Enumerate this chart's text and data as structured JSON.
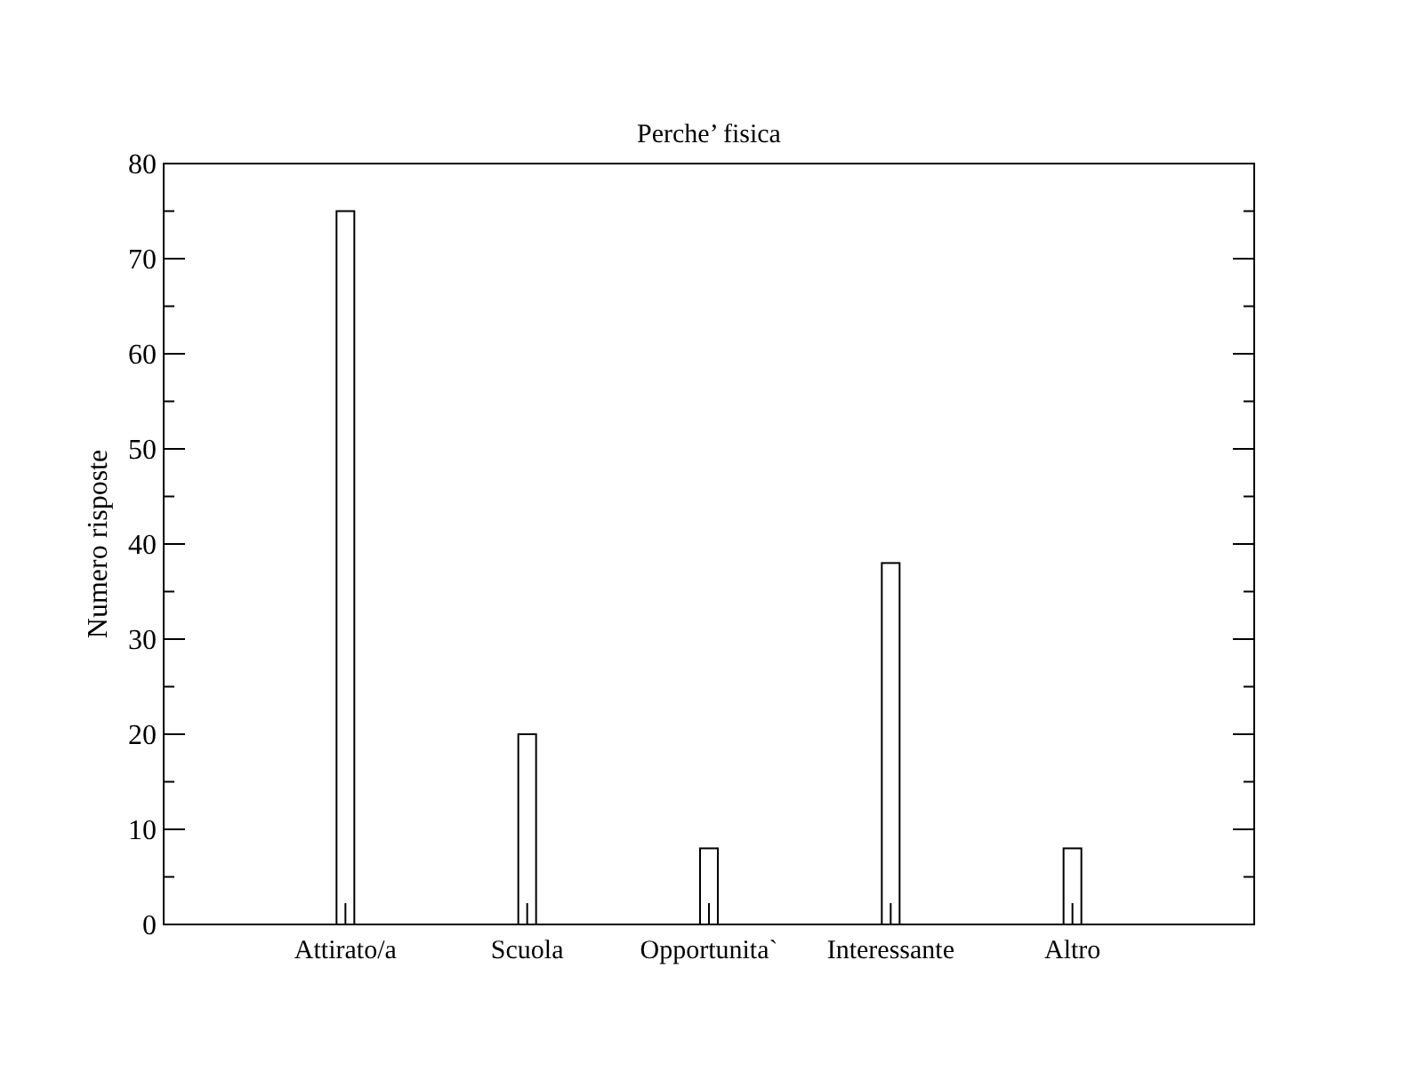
{
  "chart_data": {
    "type": "bar",
    "title": "Perche’ fisica",
    "ylabel": "Numero risposte",
    "categories": [
      "Attirato/a",
      "Scuola",
      "Opportunita`",
      "Interessante",
      "Altro"
    ],
    "values": [
      75,
      20,
      8,
      38,
      8
    ],
    "color": "#ffffff",
    "ylim": [
      0,
      80
    ],
    "yticks": [
      0,
      {
        "value": 5,
        "label": null
      },
      10,
      {
        "value": 15,
        "label": null
      },
      20,
      {
        "value": 25,
        "label": null
      },
      30,
      {
        "value": 35,
        "label": null
      },
      40,
      {
        "value": 45,
        "label": null
      },
      50,
      {
        "value": 55,
        "label": null
      },
      60,
      {
        "value": 65,
        "label": null
      },
      70,
      {
        "value": 75,
        "label": null
      },
      80
    ],
    "grid": false
  }
}
